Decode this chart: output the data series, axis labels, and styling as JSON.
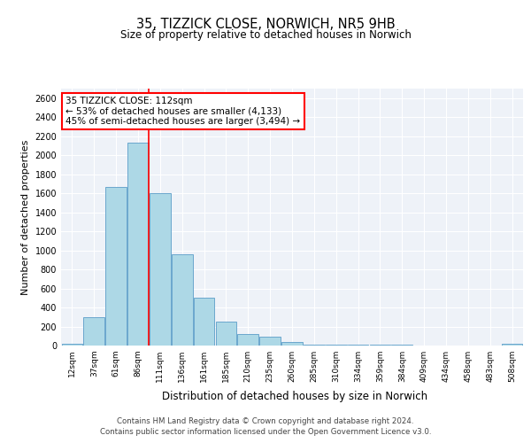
{
  "title1": "35, TIZZICK CLOSE, NORWICH, NR5 9HB",
  "title2": "Size of property relative to detached houses in Norwich",
  "xlabel": "Distribution of detached houses by size in Norwich",
  "ylabel": "Number of detached properties",
  "bar_labels": [
    "12sqm",
    "37sqm",
    "61sqm",
    "86sqm",
    "111sqm",
    "136sqm",
    "161sqm",
    "185sqm",
    "210sqm",
    "235sqm",
    "260sqm",
    "285sqm",
    "310sqm",
    "334sqm",
    "359sqm",
    "384sqm",
    "409sqm",
    "434sqm",
    "458sqm",
    "483sqm",
    "508sqm"
  ],
  "bar_values": [
    20,
    295,
    1670,
    2130,
    1600,
    960,
    505,
    250,
    120,
    95,
    35,
    10,
    10,
    5,
    5,
    5,
    3,
    2,
    2,
    2,
    15
  ],
  "bar_color": "#add8e6",
  "bar_edge_color": "#5b9dc8",
  "annotation_box_text_line1": "35 TIZZICK CLOSE: 112sqm",
  "annotation_box_text_line2": "← 53% of detached houses are smaller (4,133)",
  "annotation_box_text_line3": "45% of semi-detached houses are larger (3,494) →",
  "annotation_box_edge_color": "red",
  "ylim": [
    0,
    2700
  ],
  "yticks": [
    0,
    200,
    400,
    600,
    800,
    1000,
    1200,
    1400,
    1600,
    1800,
    2000,
    2200,
    2400,
    2600
  ],
  "background_color": "#ffffff",
  "plot_bg_color": "#eef2f8",
  "footer_line1": "Contains HM Land Registry data © Crown copyright and database right 2024.",
  "footer_line2": "Contains public sector information licensed under the Open Government Licence v3.0."
}
